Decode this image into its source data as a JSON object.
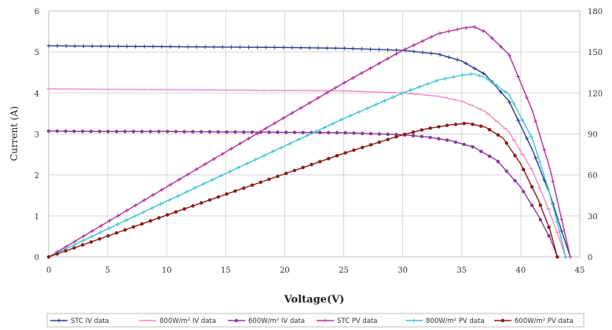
{
  "chart_data": {
    "type": "line",
    "xlabel": "Voltage(V)",
    "ylabel": "Current (A)",
    "x_range": [
      0,
      45
    ],
    "ylim_left": [
      0,
      6
    ],
    "ylim_right": [
      0,
      180
    ],
    "x_ticks": [
      0,
      5,
      10,
      15,
      20,
      25,
      30,
      35,
      40,
      45
    ],
    "y_left_ticks": [
      0,
      1,
      2,
      3,
      4,
      5,
      6
    ],
    "y_right_ticks": [
      0,
      30,
      60,
      90,
      120,
      150,
      180
    ],
    "grid": true,
    "legend_position": "bottom",
    "series": [
      {
        "name": "STC IV data",
        "axis": "left",
        "color": "#2b3a8c",
        "marker": "plus",
        "x": [
          0,
          5,
          10,
          15,
          20,
          25,
          30,
          33,
          35,
          37,
          39,
          41,
          42.5,
          43.5,
          44.2
        ],
        "y": [
          5.15,
          5.14,
          5.13,
          5.12,
          5.11,
          5.09,
          5.04,
          4.95,
          4.78,
          4.45,
          3.8,
          2.6,
          1.5,
          0.6,
          0
        ]
      },
      {
        "name": "800W/m² IV data",
        "axis": "left",
        "color": "#f08cc0",
        "marker": "dash",
        "x": [
          0,
          5,
          10,
          15,
          20,
          25,
          30,
          33,
          35,
          37,
          39,
          41,
          42.3,
          43.2,
          43.8
        ],
        "y": [
          4.1,
          4.09,
          4.08,
          4.07,
          4.06,
          4.05,
          4.0,
          3.92,
          3.8,
          3.55,
          3.05,
          2.1,
          1.2,
          0.5,
          0
        ]
      },
      {
        "name": "600W/m² IV data",
        "axis": "left",
        "color": "#8b3a9a",
        "marker": "circle",
        "x": [
          0,
          5,
          10,
          15,
          20,
          25,
          30,
          32,
          34,
          36,
          38,
          40,
          41.5,
          42.5,
          43.1
        ],
        "y": [
          3.07,
          3.06,
          3.06,
          3.05,
          3.04,
          3.03,
          2.98,
          2.93,
          2.84,
          2.68,
          2.35,
          1.7,
          1.0,
          0.45,
          0
        ]
      },
      {
        "name": "STC PV data",
        "axis": "right",
        "color": "#b0309a",
        "marker": "plus",
        "x": [
          0,
          5,
          10,
          15,
          20,
          25,
          30,
          33,
          35,
          36,
          37,
          39,
          41,
          42.5,
          43.5,
          44.2
        ],
        "y": [
          0,
          25.7,
          51.3,
          76.8,
          102.2,
          127.3,
          151.2,
          163.4,
          167.3,
          168.5,
          164.7,
          148.2,
          106.6,
          63.8,
          26.1,
          0
        ]
      },
      {
        "name": "800W/m² PV data",
        "axis": "right",
        "color": "#40c4d0",
        "marker": "plus",
        "x": [
          0,
          5,
          10,
          15,
          20,
          25,
          30,
          33,
          35,
          36,
          37,
          39,
          41,
          42.3,
          43.2,
          43.8
        ],
        "y": [
          0,
          20.5,
          40.8,
          61.1,
          81.2,
          101.3,
          120.0,
          129.4,
          133.0,
          134.0,
          131.4,
          119.0,
          86.1,
          50.8,
          21.6,
          0
        ]
      },
      {
        "name": "600W/m² PV data",
        "axis": "right",
        "color": "#8b1a1a",
        "marker": "circle",
        "x": [
          0,
          5,
          10,
          15,
          20,
          25,
          30,
          32,
          34,
          35.5,
          37,
          38.5,
          40,
          41.5,
          42.5,
          43.1
        ],
        "y": [
          0,
          15.3,
          30.6,
          45.8,
          60.8,
          75.8,
          89.4,
          93.8,
          96.6,
          97.9,
          95.0,
          87.0,
          68.0,
          41.5,
          19.1,
          0
        ]
      }
    ]
  }
}
